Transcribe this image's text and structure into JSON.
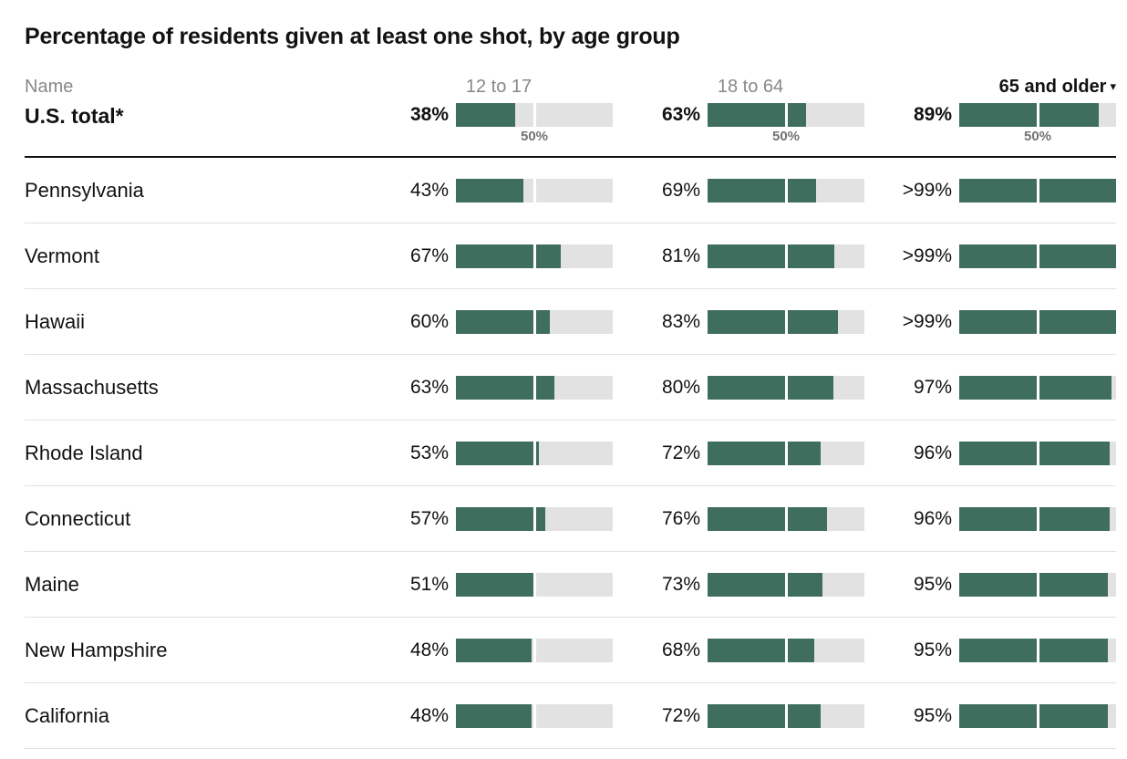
{
  "title": "Percentage of residents given at least one shot, by age group",
  "header": {
    "name_label": "Name",
    "age_groups": [
      "12 to 17",
      "18 to 64",
      "65 and older"
    ],
    "sorted_group": "65 and older",
    "sort_direction": "descending",
    "sort_icon": "▾"
  },
  "midpoint_label": "50%",
  "colors": {
    "bar_fill": "#3F6E5F",
    "bar_track": "#E2E2E2",
    "text": "#121212",
    "header_text": "#888888",
    "caption_text": "#737373",
    "divider": "#E2E2E2"
  },
  "rows": [
    {
      "name": "U.S. total*",
      "is_total": true,
      "values": [
        {
          "label": "38%",
          "pct": 38
        },
        {
          "label": "63%",
          "pct": 63
        },
        {
          "label": "89%",
          "pct": 89
        }
      ]
    },
    {
      "name": "Pennsylvania",
      "values": [
        {
          "label": "43%",
          "pct": 43
        },
        {
          "label": "69%",
          "pct": 69
        },
        {
          "label": ">99%",
          "pct": 100
        }
      ]
    },
    {
      "name": "Vermont",
      "values": [
        {
          "label": "67%",
          "pct": 67
        },
        {
          "label": "81%",
          "pct": 81
        },
        {
          "label": ">99%",
          "pct": 100
        }
      ]
    },
    {
      "name": "Hawaii",
      "values": [
        {
          "label": "60%",
          "pct": 60
        },
        {
          "label": "83%",
          "pct": 83
        },
        {
          "label": ">99%",
          "pct": 100
        }
      ]
    },
    {
      "name": "Massachusetts",
      "values": [
        {
          "label": "63%",
          "pct": 63
        },
        {
          "label": "80%",
          "pct": 80
        },
        {
          "label": "97%",
          "pct": 97
        }
      ]
    },
    {
      "name": "Rhode Island",
      "values": [
        {
          "label": "53%",
          "pct": 53
        },
        {
          "label": "72%",
          "pct": 72
        },
        {
          "label": "96%",
          "pct": 96
        }
      ]
    },
    {
      "name": "Connecticut",
      "values": [
        {
          "label": "57%",
          "pct": 57
        },
        {
          "label": "76%",
          "pct": 76
        },
        {
          "label": "96%",
          "pct": 96
        }
      ]
    },
    {
      "name": "Maine",
      "values": [
        {
          "label": "51%",
          "pct": 51
        },
        {
          "label": "73%",
          "pct": 73
        },
        {
          "label": "95%",
          "pct": 95
        }
      ]
    },
    {
      "name": "New Hampshire",
      "values": [
        {
          "label": "48%",
          "pct": 48
        },
        {
          "label": "68%",
          "pct": 68
        },
        {
          "label": "95%",
          "pct": 95
        }
      ]
    },
    {
      "name": "California",
      "values": [
        {
          "label": "48%",
          "pct": 48
        },
        {
          "label": "72%",
          "pct": 72
        },
        {
          "label": "95%",
          "pct": 95
        }
      ]
    }
  ],
  "chart_data": {
    "type": "bar",
    "orientation": "horizontal",
    "title": "Percentage of residents given at least one shot, by age group",
    "categories": [
      "U.S. total*",
      "Pennsylvania",
      "Vermont",
      "Hawaii",
      "Massachusetts",
      "Rhode Island",
      "Connecticut",
      "Maine",
      "New Hampshire",
      "California"
    ],
    "series": [
      {
        "name": "12 to 17",
        "values": [
          38,
          43,
          67,
          60,
          63,
          53,
          57,
          51,
          48,
          48
        ],
        "display_labels": [
          "38%",
          "43%",
          "67%",
          "60%",
          "63%",
          "53%",
          "57%",
          "51%",
          "48%",
          "48%"
        ]
      },
      {
        "name": "18 to 64",
        "values": [
          63,
          69,
          81,
          83,
          80,
          72,
          76,
          73,
          68,
          72
        ],
        "display_labels": [
          "63%",
          "69%",
          "81%",
          "83%",
          "80%",
          "72%",
          "76%",
          "73%",
          "68%",
          "72%"
        ]
      },
      {
        "name": "65 and older",
        "values": [
          89,
          100,
          100,
          100,
          97,
          96,
          96,
          95,
          95,
          95
        ],
        "display_labels": [
          "89%",
          ">99%",
          ">99%",
          ">99%",
          "97%",
          "96%",
          "96%",
          "95%",
          "95%",
          "95%"
        ]
      }
    ],
    "xlim": [
      0,
      100
    ],
    "reference_line": {
      "value": 50,
      "label": "50%"
    },
    "grid": false,
    "legend_position": "column-headers",
    "sort": {
      "column": "65 and older",
      "direction": "desc"
    }
  }
}
